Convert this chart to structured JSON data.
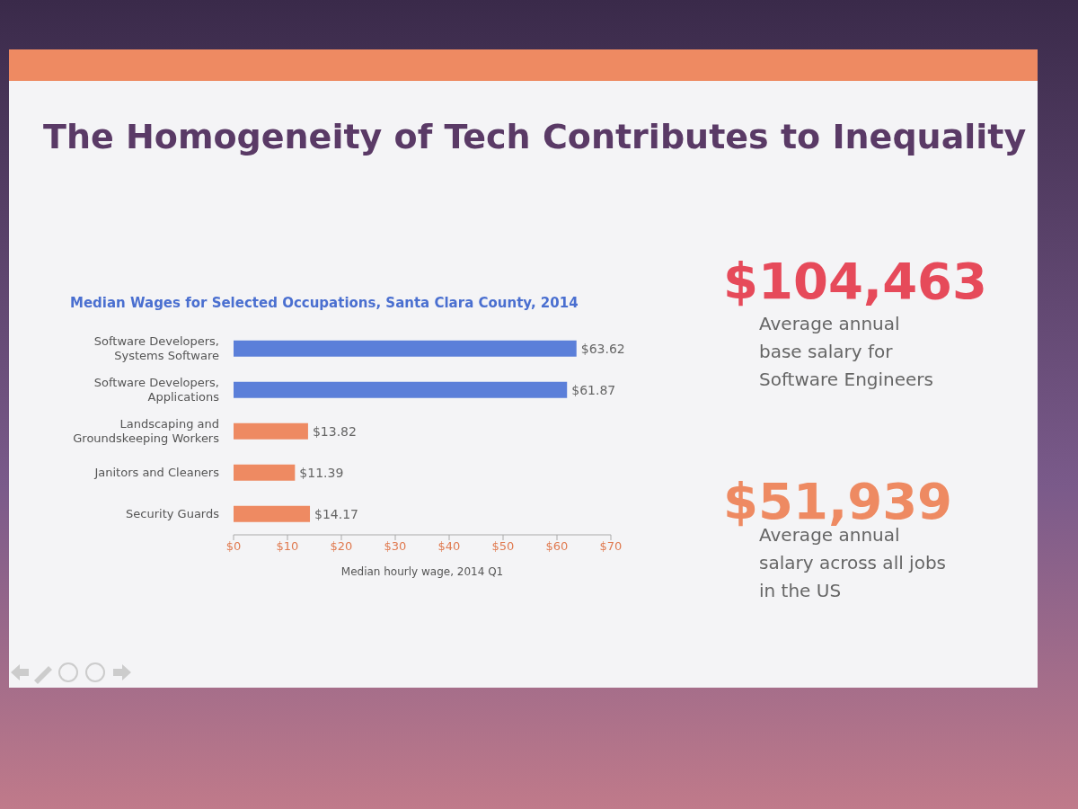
{
  "chart_data": {
    "type": "bar",
    "orientation": "horizontal",
    "title": "The Homogeneity of Tech Contributes to Inequality",
    "subtitle": "Median Wages for Selected Occupations, Santa Clara County, 2014",
    "xlabel": "Median hourly wage, 2014 Q1",
    "categories": [
      "Software Developers, Systems Software",
      "Software Developers, Applications",
      "Landscaping and Groundskeeping Workers",
      "Janitors and Cleaners",
      "Security Guards"
    ],
    "values": [
      63.62,
      61.87,
      13.82,
      11.39,
      14.17
    ],
    "colors": [
      "#5b7fd9",
      "#5b7fd9",
      "#ee8a62",
      "#ee8a62",
      "#ee8a62"
    ],
    "value_labels": [
      "$63.62",
      "$61.87",
      "$13.82",
      "$11.39",
      "$14.17"
    ],
    "xlim": [
      0,
      70
    ],
    "xticks": [
      {
        "value": 0,
        "label": "$0"
      },
      {
        "value": 10,
        "label": "$10"
      },
      {
        "value": 20,
        "label": "$20"
      },
      {
        "value": 30,
        "label": "$30"
      },
      {
        "value": 40,
        "label": "$40"
      },
      {
        "value": 50,
        "label": "$50"
      },
      {
        "value": 60,
        "label": "$60"
      },
      {
        "value": 70,
        "label": "$70"
      }
    ],
    "grid": false,
    "legend": false,
    "annotations": [
      "$104,463",
      "Average annual base salary for Software Engineers",
      "$51,939",
      "Average annual salary across all jobs in the US"
    ]
  }
}
